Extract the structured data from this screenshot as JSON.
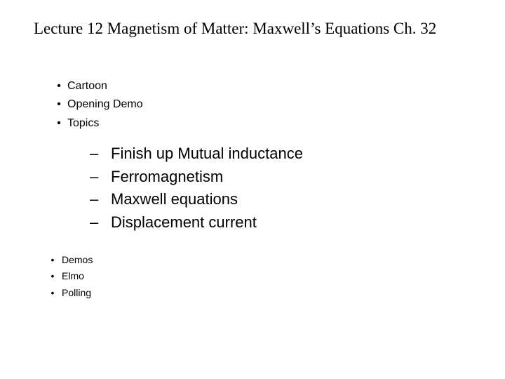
{
  "title": "Lecture 12 Magnetism of Matter: Maxwell’s Equations  Ch. 32",
  "bullets_top": [
    "Cartoon",
    "Opening Demo",
    "Topics"
  ],
  "subtopics": [
    "Finish up Mutual inductance",
    "Ferromagnetism",
    "Maxwell equations",
    "Displacement current"
  ],
  "bullets_bottom": [
    "Demos",
    "Elmo",
    "Polling"
  ],
  "colors": {
    "background": "#ffffff",
    "text": "#000000"
  },
  "fonts": {
    "title_family": "Times New Roman",
    "title_size_pt": 18,
    "body_family": "Arial",
    "top_list_size_pt": 12,
    "sublist_size_pt": 17,
    "bottom_list_size_pt": 11
  }
}
